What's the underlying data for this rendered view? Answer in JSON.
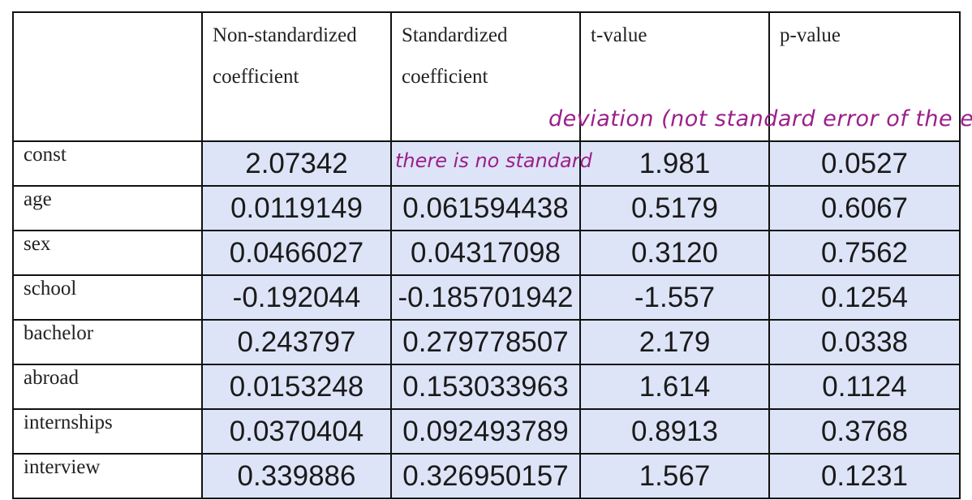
{
  "table": {
    "headers": [
      "",
      "Non-standardized coefficient",
      "Standardized coefficient",
      "t-value",
      "p-value"
    ],
    "rows": [
      {
        "label": "const",
        "nonstd": "2.07342",
        "std": "",
        "t": "1.981",
        "p": "0.0527"
      },
      {
        "label": "age",
        "nonstd": "0.0119149",
        "std": "0.061594438",
        "t": "0.5179",
        "p": "0.6067"
      },
      {
        "label": "sex",
        "nonstd": "0.0466027",
        "std": "0.04317098",
        "t": "0.3120",
        "p": "0.7562"
      },
      {
        "label": "school",
        "nonstd": "-0.192044",
        "std": "-0.185701942",
        "t": "-1.557",
        "p": "0.1254"
      },
      {
        "label": "bachelor",
        "nonstd": "0.243797",
        "std": "0.279778507",
        "t": "2.179",
        "p": "0.0338"
      },
      {
        "label": "abroad",
        "nonstd": "0.0153248",
        "std": "0.153033963",
        "t": "1.614",
        "p": "0.1124"
      },
      {
        "label": "internships",
        "nonstd": "0.0370404",
        "std": "0.092493789",
        "t": "0.8913",
        "p": "0.3768"
      },
      {
        "label": "interview",
        "nonstd": "0.339886",
        "std": "0.326950157",
        "t": "1.567",
        "p": "0.1231"
      }
    ]
  },
  "annotations": {
    "header_note": "deviation (not standard error of the es",
    "const_note": "there is no standard"
  }
}
